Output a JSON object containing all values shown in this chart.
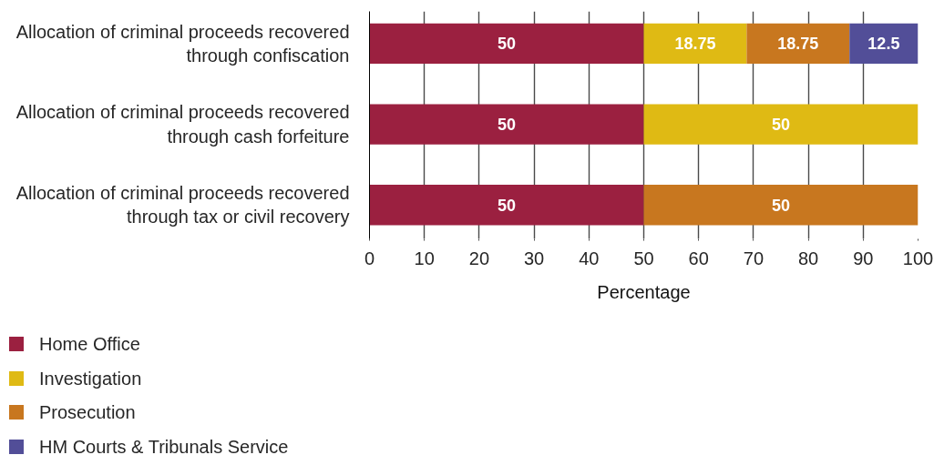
{
  "chart_data": {
    "type": "bar",
    "orientation": "horizontal",
    "stacked": true,
    "categories": [
      "Allocation of criminal proceeds recovered\nthrough confiscation",
      "Allocation of criminal proceeds recovered\nthrough cash forfeiture",
      "Allocation of criminal proceeds recovered\nthrough tax or civil recovery"
    ],
    "series": [
      {
        "name": "Home Office",
        "color": "#9b2040",
        "values": [
          50,
          50,
          50
        ]
      },
      {
        "name": "Investigation",
        "color": "#dfba14",
        "values": [
          18.75,
          50,
          null
        ]
      },
      {
        "name": "Prosecution",
        "color": "#c8771f",
        "values": [
          18.75,
          null,
          50
        ]
      },
      {
        "name": "HM Courts & Tribunals Service",
        "color": "#524e98",
        "values": [
          12.5,
          null,
          null
        ]
      }
    ],
    "xlabel": "Percentage",
    "xlim": [
      0,
      100
    ],
    "xticks": [
      0,
      10,
      20,
      30,
      40,
      50,
      60,
      70,
      80,
      90,
      100
    ],
    "grid": "x",
    "legend": "bottom left",
    "data_labels": true
  }
}
